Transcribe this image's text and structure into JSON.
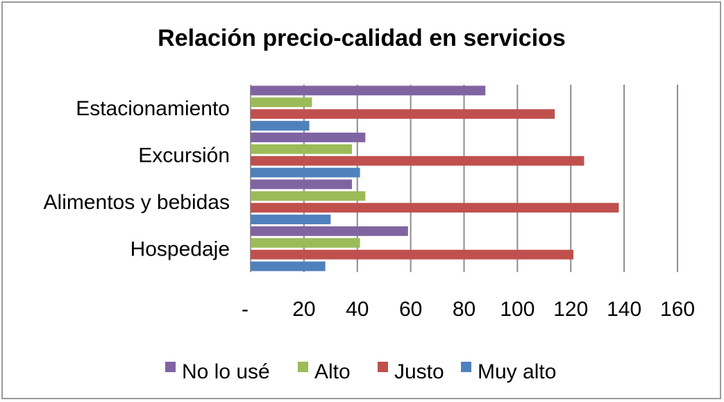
{
  "chart_data": {
    "type": "bar",
    "orientation": "horizontal",
    "title": "Relación precio-calidad en servicios",
    "categories": [
      "Estacionamiento",
      "Excursión",
      "Alimentos y bebidas",
      "Hospedaje"
    ],
    "series": [
      {
        "name": "No lo usé",
        "color": "#8064a2",
        "values": [
          88,
          43,
          38,
          59
        ]
      },
      {
        "name": "Alto",
        "color": "#9bbb59",
        "values": [
          23,
          38,
          43,
          41
        ]
      },
      {
        "name": "Justo",
        "color": "#c0504d",
        "values": [
          114,
          125,
          138,
          121
        ]
      },
      {
        "name": "Muy alto",
        "color": "#4f81bd",
        "values": [
          22,
          41,
          30,
          28
        ]
      }
    ],
    "xlim": [
      0,
      160
    ],
    "x_ticks": [
      0,
      20,
      40,
      60,
      80,
      100,
      120,
      140,
      160
    ],
    "x_tick_labels": [
      "-",
      "20",
      "40",
      "60",
      "80",
      "100",
      "120",
      "140",
      "160"
    ],
    "grid": "vertical",
    "legend_position": "bottom"
  }
}
